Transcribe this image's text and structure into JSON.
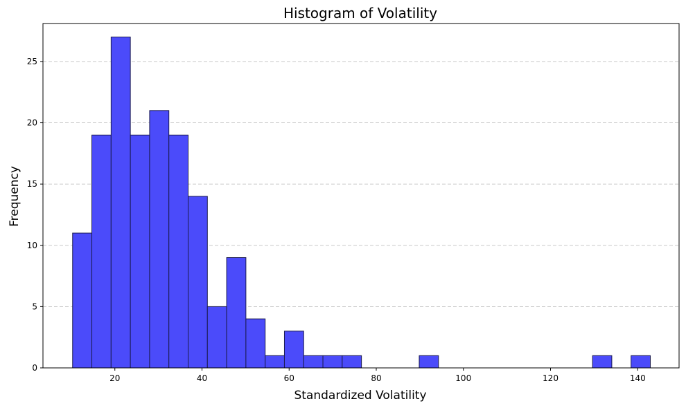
{
  "chart_data": {
    "type": "bar",
    "subtype": "histogram",
    "title": "Histogram of Volatility",
    "xlabel": "Standardized Volatility",
    "ylabel": "Frequency",
    "xlim": [
      3.5,
      149.5
    ],
    "ylim": [
      0,
      28.1
    ],
    "xticks": [
      20,
      40,
      60,
      80,
      100,
      120,
      140
    ],
    "yticks": [
      0,
      5,
      10,
      15,
      20,
      25
    ],
    "grid": {
      "axis": "y",
      "style": "dashed"
    },
    "bin_start": 10.3,
    "bin_width": 4.42,
    "counts": [
      11,
      19,
      27,
      19,
      21,
      19,
      14,
      5,
      9,
      4,
      1,
      3,
      1,
      1,
      1,
      0,
      0,
      0,
      1,
      0,
      0,
      0,
      0,
      0,
      0,
      0,
      0,
      1,
      0,
      1
    ],
    "colors": {
      "bar_fill": "#4b4bfa",
      "bar_edge": "#1a1a4d",
      "grid": "#c0c0c0"
    }
  }
}
